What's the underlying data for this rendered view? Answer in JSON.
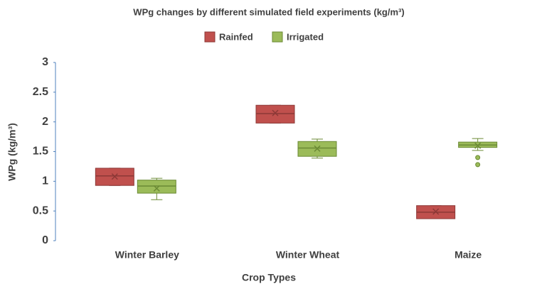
{
  "chart_data": {
    "type": "box",
    "title": "WPg changes  by different simulated field experiments (kg/m³)",
    "x_label": "Crop Types",
    "y_label": "WPg (kg/m³)",
    "categories": [
      "Winter Barley",
      "Winter Wheat",
      "Maize"
    ],
    "series": [
      {
        "name": "Rainfed",
        "color": "#c0504d",
        "edge": "#8c3836",
        "boxes": [
          {
            "min": 0.93,
            "q1": 0.93,
            "median": 1.09,
            "q3": 1.22,
            "max": 1.22,
            "mean": 1.08,
            "outliers": []
          },
          {
            "min": 1.98,
            "q1": 1.98,
            "median": 2.14,
            "q3": 2.28,
            "max": 2.28,
            "mean": 2.15,
            "outliers": []
          },
          {
            "min": 0.37,
            "q1": 0.37,
            "median": 0.48,
            "q3": 0.59,
            "max": 0.59,
            "mean": 0.49,
            "outliers": []
          }
        ]
      },
      {
        "name": "Irrigated",
        "color": "#9bbb59",
        "edge": "#6b8a35",
        "boxes": [
          {
            "min": 0.69,
            "q1": 0.8,
            "median": 0.92,
            "q3": 1.02,
            "max": 1.05,
            "mean": 0.88,
            "outliers": []
          },
          {
            "min": 1.39,
            "q1": 1.42,
            "median": 1.56,
            "q3": 1.67,
            "max": 1.71,
            "mean": 1.55,
            "outliers": []
          },
          {
            "min": 1.52,
            "q1": 1.57,
            "median": 1.61,
            "q3": 1.66,
            "max": 1.72,
            "mean": 1.6,
            "outliers": [
              1.4,
              1.28
            ]
          }
        ]
      }
    ],
    "ylim": [
      0,
      3
    ],
    "yticks": [
      0,
      0.5,
      1,
      1.5,
      2,
      2.5,
      3
    ],
    "grid": false,
    "legend": "top"
  }
}
